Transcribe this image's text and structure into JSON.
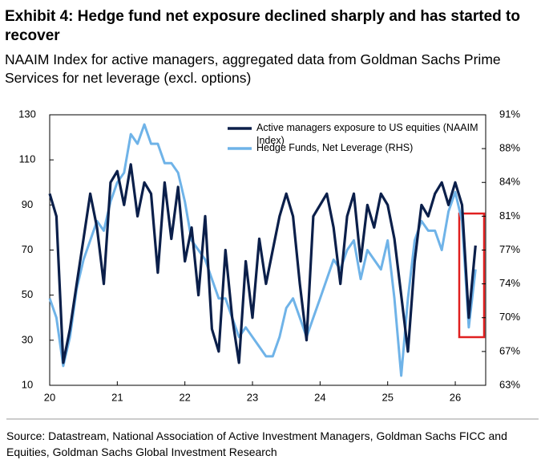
{
  "chart_data": {
    "type": "line",
    "title": "Exhibit 4: Hedge fund net exposure declined sharply and has started to recover",
    "subtitle": "NAAIM Index for active managers, aggregated data from Goldman Sachs Prime Services for net leverage (excl. options)",
    "source": "Source: Datastream, National Association of Active Investment Managers, Goldman Sachs FICC and Equities, Goldman Sachs Global Investment Research",
    "x": [
      20.0,
      20.1,
      20.2,
      20.3,
      20.4,
      20.5,
      20.6,
      20.7,
      20.8,
      20.9,
      21.0,
      21.1,
      21.2,
      21.3,
      21.4,
      21.5,
      21.6,
      21.7,
      21.8,
      21.9,
      22.0,
      22.1,
      22.2,
      22.3,
      22.4,
      22.5,
      22.6,
      22.7,
      22.8,
      22.9,
      23.0,
      23.1,
      23.2,
      23.3,
      23.4,
      23.5,
      23.6,
      23.7,
      23.8,
      23.9,
      24.0,
      24.1,
      24.2,
      24.3,
      24.4,
      24.5,
      24.6,
      24.7,
      24.8,
      24.9,
      25.0,
      25.1,
      25.2,
      25.3,
      25.4,
      25.5,
      25.6,
      25.7,
      25.8,
      25.9,
      26.0,
      26.1,
      26.2,
      26.3
    ],
    "xlim": [
      20,
      26.45
    ],
    "xticks": [
      20,
      21,
      22,
      23,
      24,
      25,
      26
    ],
    "ylim": [
      10,
      130
    ],
    "yticks": [
      10,
      30,
      50,
      70,
      90,
      110,
      130
    ],
    "y2lim": [
      63,
      91
    ],
    "y2ticks": [
      {
        "value": 63,
        "label": "63%"
      },
      {
        "value": 66.5,
        "label": "67%"
      },
      {
        "value": 70,
        "label": "70%"
      },
      {
        "value": 73.5,
        "label": "74%"
      },
      {
        "value": 77,
        "label": "77%"
      },
      {
        "value": 80.5,
        "label": "81%"
      },
      {
        "value": 84,
        "label": "84%"
      },
      {
        "value": 87.5,
        "label": "88%"
      },
      {
        "value": 91,
        "label": "91%"
      }
    ],
    "series": [
      {
        "name": "Active managers exposure to US equities (NAAIM Index)",
        "color": "#0b1f4a",
        "values": [
          95,
          85,
          20,
          35,
          55,
          75,
          95,
          80,
          55,
          100,
          105,
          90,
          108,
          85,
          100,
          95,
          60,
          100,
          75,
          98,
          65,
          80,
          50,
          85,
          35,
          25,
          70,
          40,
          20,
          65,
          40,
          75,
          55,
          70,
          85,
          95,
          85,
          55,
          30,
          85,
          90,
          95,
          80,
          55,
          85,
          95,
          65,
          90,
          80,
          95,
          90,
          75,
          50,
          25,
          65,
          90,
          85,
          95,
          100,
          90,
          100,
          90,
          40,
          72
        ]
      },
      {
        "name": "Hedge Funds, Net Leverage (RHS)",
        "color": "#6fb3e8",
        "axis": "y2",
        "values": [
          72,
          70,
          65,
          68,
          73,
          76,
          78,
          80,
          79,
          82,
          84,
          85,
          89,
          88,
          90,
          88,
          88,
          86,
          86,
          85,
          82,
          78,
          77,
          76,
          74,
          72,
          72,
          70,
          68,
          69,
          68,
          67,
          66,
          66,
          68,
          71,
          72,
          70,
          68,
          70,
          72,
          74,
          76,
          75,
          77,
          78,
          74,
          77,
          76,
          75,
          78,
          72,
          64,
          72,
          78,
          80,
          79,
          79,
          77,
          81,
          83,
          80,
          69,
          75
        ]
      }
    ]
  }
}
